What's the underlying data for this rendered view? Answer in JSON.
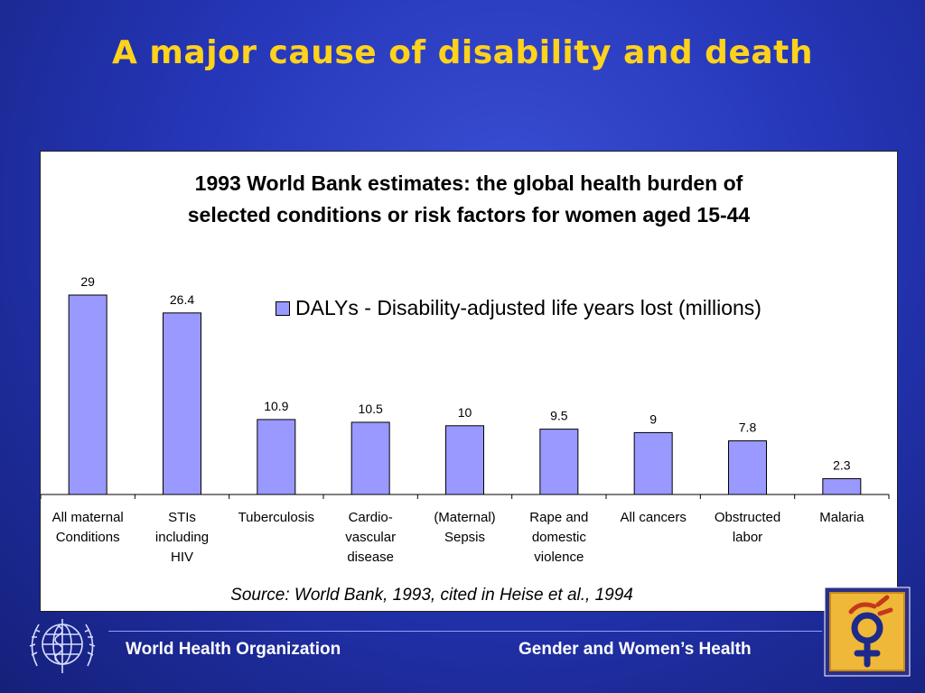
{
  "slide": {
    "title": "A major cause of disability and death",
    "source": "Source: World Bank, 1993, cited in Heise et al., 1994",
    "footer_left": "World Health Organization",
    "footer_right": "Gender and Women’s Health"
  },
  "colors": {
    "background": "#2536b8",
    "title": "#ffd21c",
    "bar_fill": "#9999ff",
    "bar_stroke": "#000000"
  },
  "icons": [
    "who-emblem-icon",
    "gender-symbol-logo-icon"
  ],
  "chart_data": {
    "type": "bar",
    "title_lines": [
      "1993 World Bank estimates: the global health burden of",
      "selected conditions or risk factors for women aged 15-44"
    ],
    "categories": [
      [
        "All maternal",
        "Conditions"
      ],
      [
        "STIs",
        "including",
        "HIV"
      ],
      [
        "Tuberculosis"
      ],
      [
        "Cardio-",
        "vascular",
        "disease"
      ],
      [
        "(Maternal)",
        "Sepsis"
      ],
      [
        "Rape and",
        "domestic",
        "violence"
      ],
      [
        "All cancers"
      ],
      [
        "Obstructed",
        "labor"
      ],
      [
        "Malaria"
      ]
    ],
    "series": [
      {
        "name": "DALYs - Disability-adjusted life years lost (millions)",
        "values": [
          29,
          26.4,
          10.9,
          10.5,
          10,
          9.5,
          9,
          7.8,
          2.3
        ],
        "labels": [
          "29",
          "26.4",
          "10.9",
          "10.5",
          "10",
          "9.5",
          "9",
          "7.8",
          "2.3"
        ]
      }
    ],
    "ylim": [
      0,
      32
    ],
    "grid": false,
    "legend_position": "top-right"
  }
}
